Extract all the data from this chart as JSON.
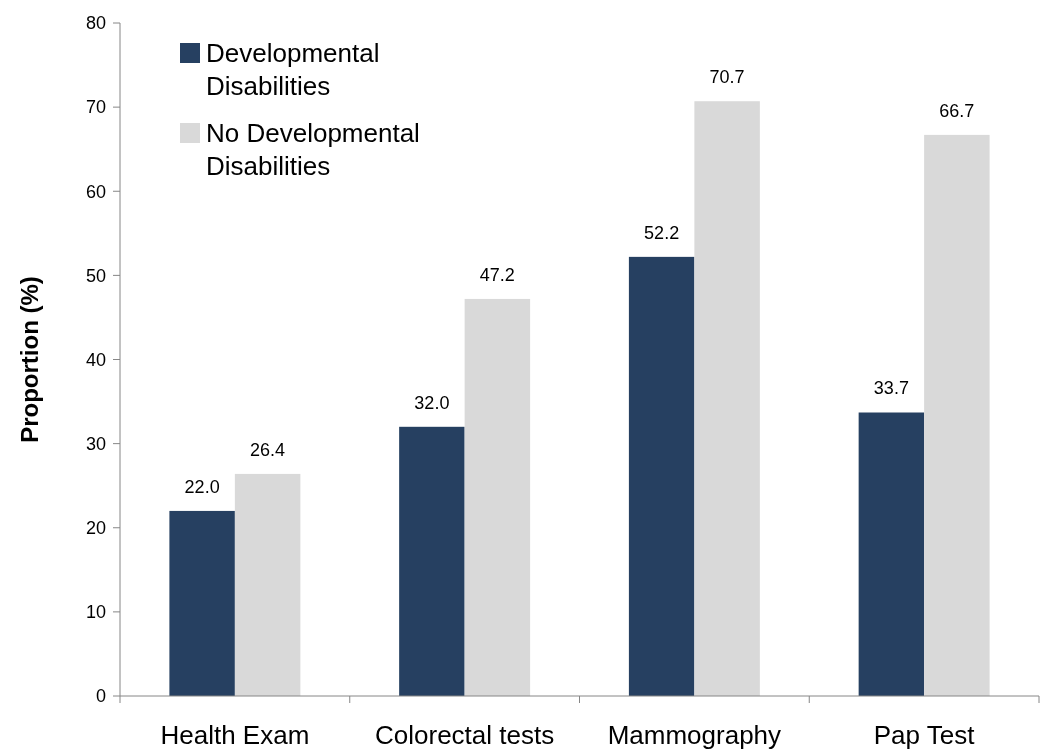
{
  "chart_data": {
    "type": "bar",
    "ylabel": "Proportion (%)",
    "categories": [
      "Health Exam",
      "Colorectal tests",
      "Mammography",
      "Pap Test"
    ],
    "series": [
      {
        "name": "Developmental Disabilities",
        "color": "#264061",
        "values": [
          22.0,
          32.0,
          52.2,
          33.7
        ],
        "value_labels": [
          "22.0",
          "32.0",
          "52.2",
          "33.7"
        ]
      },
      {
        "name": "No Developmental Disabilities",
        "color": "#d9d9d9",
        "values": [
          26.4,
          47.2,
          70.7,
          66.7
        ],
        "value_labels": [
          "26.4",
          "47.2",
          "70.7",
          "66.7"
        ]
      }
    ],
    "ylim": [
      0,
      80
    ],
    "yticks": [
      0,
      10,
      20,
      30,
      40,
      50,
      60,
      70,
      80
    ],
    "grid": false,
    "legend": "top left"
  }
}
